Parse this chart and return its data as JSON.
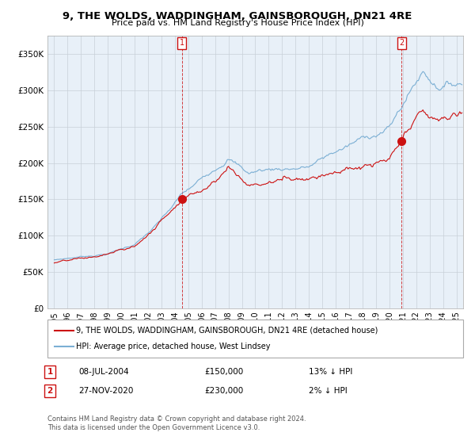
{
  "title": "9, THE WOLDS, WADDINGHAM, GAINSBOROUGH, DN21 4RE",
  "subtitle": "Price paid vs. HM Land Registry's House Price Index (HPI)",
  "ylabel_ticks": [
    "£0",
    "£50K",
    "£100K",
    "£150K",
    "£200K",
    "£250K",
    "£300K",
    "£350K"
  ],
  "ytick_values": [
    0,
    50000,
    100000,
    150000,
    200000,
    250000,
    300000,
    350000
  ],
  "ylim": [
    0,
    375000
  ],
  "xlim_start": 1994.5,
  "xlim_end": 2025.5,
  "hpi_color": "#7bafd4",
  "price_color": "#cc1111",
  "plot_bg_color": "#e8f0f8",
  "marker1_x": 2004.53,
  "marker1_y": 150000,
  "marker2_x": 2020.92,
  "marker2_y": 230000,
  "marker_color": "#cc1111",
  "legend_entry1": "9, THE WOLDS, WADDINGHAM, GAINSBOROUGH, DN21 4RE (detached house)",
  "legend_entry2": "HPI: Average price, detached house, West Lindsey",
  "annotation1_label": "1",
  "annotation1_date": "08-JUL-2004",
  "annotation1_price": "£150,000",
  "annotation1_pct": "13% ↓ HPI",
  "annotation2_label": "2",
  "annotation2_date": "27-NOV-2020",
  "annotation2_price": "£230,000",
  "annotation2_pct": "2% ↓ HPI",
  "footer": "Contains HM Land Registry data © Crown copyright and database right 2024.\nThis data is licensed under the Open Government Licence v3.0.",
  "background_color": "#ffffff",
  "grid_color": "#c8d0d8"
}
